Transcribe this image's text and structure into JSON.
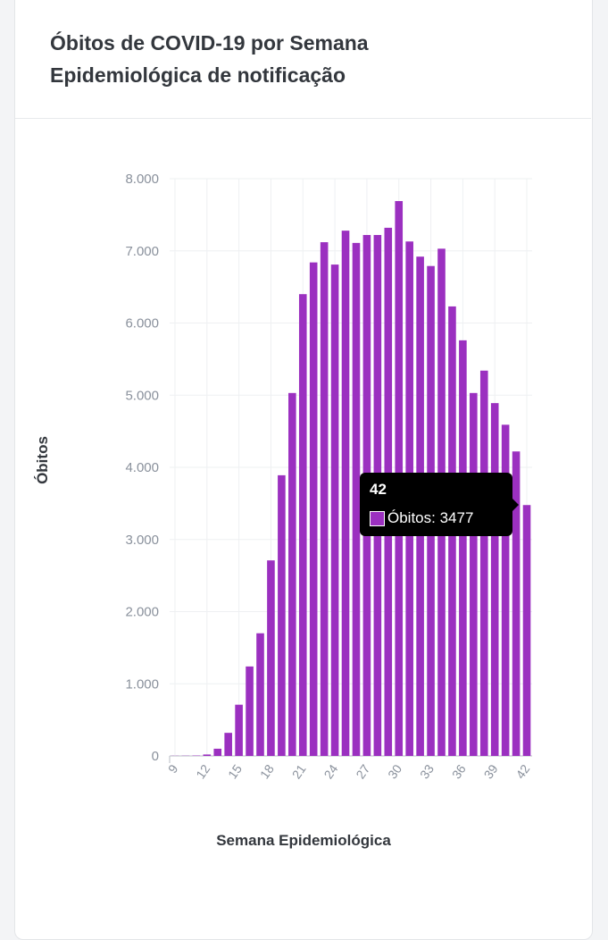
{
  "card": {
    "title": "Óbitos de COVID-19 por Semana Epidemiológica de notificação"
  },
  "chart_data": {
    "type": "bar",
    "title": "Óbitos de COVID-19 por Semana Epidemiológica de notificação",
    "xlabel": "Semana Epidemiológica",
    "ylabel": "Óbitos",
    "ylim": [
      0,
      8000
    ],
    "yticks": [
      "0",
      "1.000",
      "2.000",
      "3.000",
      "4.000",
      "5.000",
      "6.000",
      "7.000",
      "8.000"
    ],
    "xticks": [
      "9",
      "12",
      "15",
      "18",
      "21",
      "24",
      "27",
      "30",
      "33",
      "36",
      "39",
      "42"
    ],
    "grid": true,
    "color": "#9b30c0",
    "categories": [
      9,
      10,
      11,
      12,
      13,
      14,
      15,
      16,
      17,
      18,
      19,
      20,
      21,
      22,
      23,
      24,
      25,
      26,
      27,
      28,
      29,
      30,
      31,
      32,
      33,
      34,
      35,
      36,
      37,
      38,
      39,
      40,
      41,
      42
    ],
    "series": [
      {
        "name": "Óbitos",
        "values": [
          2,
          3,
          5,
          20,
          100,
          320,
          710,
          1240,
          1700,
          2710,
          3890,
          5030,
          6400,
          6840,
          7120,
          6810,
          7280,
          7110,
          7220,
          7220,
          7320,
          7690,
          7130,
          6920,
          6790,
          7030,
          6230,
          5760,
          5030,
          5340,
          4890,
          4590,
          4220,
          3477
        ]
      }
    ]
  },
  "tooltip": {
    "title": "42",
    "label": "Óbitos: 3477"
  }
}
